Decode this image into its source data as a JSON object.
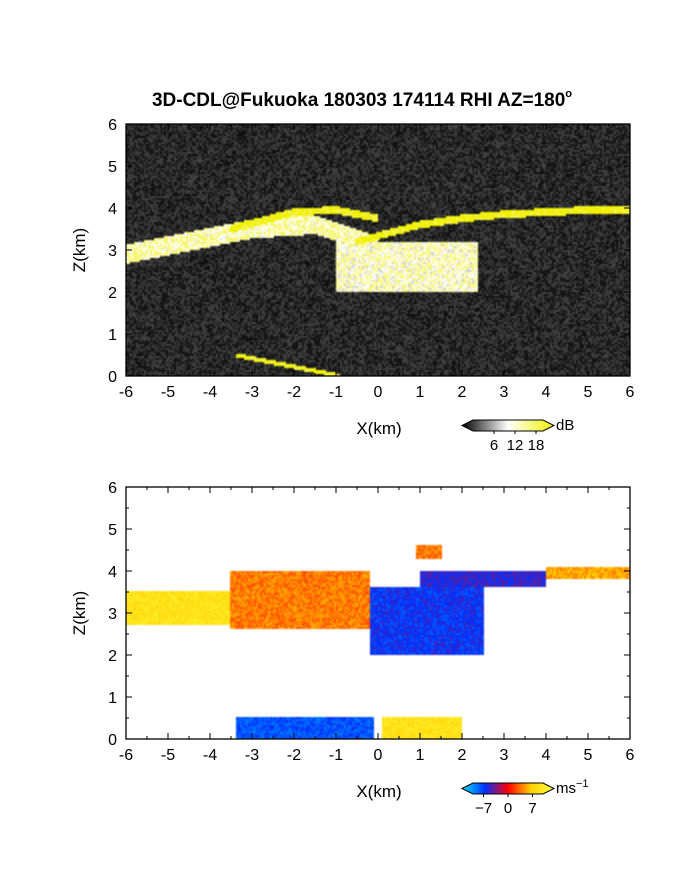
{
  "title": "3D-CDL@Fukuoka 180303 174114 RHI AZ=180",
  "title_degree": "o",
  "chart_data": [
    {
      "type": "heatmap",
      "variable": "reflectivity",
      "xlabel": "X(km)",
      "ylabel": "Z(km)",
      "xlim": [
        -6,
        6
      ],
      "ylim": [
        0,
        6
      ],
      "xticks": [
        "-6",
        "-5",
        "-4",
        "-3",
        "-2",
        "-1",
        "0",
        "1",
        "2",
        "3",
        "4",
        "5",
        "6"
      ],
      "yticks": [
        "0",
        "1",
        "2",
        "3",
        "4",
        "5",
        "6"
      ],
      "background": "#0b0b0b",
      "colorbar": {
        "unit": "dB",
        "ticks": [
          "6",
          "12",
          "18"
        ],
        "range": [
          0,
          20
        ],
        "colors": [
          "#000000",
          "#ffffff",
          "#f0f000"
        ]
      },
      "features": [
        {
          "kind": "cloud-band",
          "x": [
            -6,
            -4.5,
            -3,
            -1.5,
            0
          ],
          "z_center": [
            2.9,
            3.2,
            3.5,
            3.6,
            3.1
          ],
          "thickness_km": 0.45,
          "value_db": 13
        },
        {
          "kind": "cloud-mass",
          "x_range": [
            -1,
            2.4
          ],
          "z_range": [
            2.0,
            3.2
          ],
          "value_db": 12
        },
        {
          "kind": "thin-layer",
          "x": [
            -0.5,
            1,
            2,
            3,
            4,
            5,
            6
          ],
          "z": [
            3.2,
            3.6,
            3.75,
            3.85,
            3.9,
            3.95,
            3.95
          ],
          "value_db": 20
        },
        {
          "kind": "cloud-top",
          "x": [
            -3.5,
            -2,
            -1,
            0
          ],
          "z": [
            3.5,
            3.9,
            3.95,
            3.75
          ],
          "value_db": 20
        },
        {
          "kind": "ground-echo",
          "x": [
            -3.4,
            -0.9
          ],
          "z": [
            0.5,
            0.0
          ],
          "value_db": 20
        }
      ]
    },
    {
      "type": "heatmap",
      "variable": "doppler velocity",
      "xlabel": "X(km)",
      "ylabel": "Z(km)",
      "xlim": [
        -6,
        6
      ],
      "ylim": [
        0,
        6
      ],
      "xticks": [
        "-6",
        "-5",
        "-4",
        "-3",
        "-2",
        "-1",
        "0",
        "1",
        "2",
        "3",
        "4",
        "5",
        "6"
      ],
      "yticks": [
        "0",
        "1",
        "2",
        "3",
        "4",
        "5",
        "6"
      ],
      "background": "#ffffff",
      "colorbar": {
        "unit": "ms",
        "unit_exp": "−1",
        "ticks": [
          "−7",
          "0",
          "7"
        ],
        "range": [
          -10,
          10
        ],
        "colors": [
          "#00e0ff",
          "#0030ff",
          "#ff0000",
          "#ffd000",
          "#ffff40"
        ]
      },
      "features": [
        {
          "kind": "echo",
          "x_range": [
            -6,
            -3.5
          ],
          "z_range": [
            2.7,
            3.5
          ],
          "velocity_ms": 7
        },
        {
          "kind": "echo",
          "x_range": [
            -3.5,
            -0.2
          ],
          "z_range": [
            2.6,
            4.0
          ],
          "velocity_ms": 3
        },
        {
          "kind": "echo",
          "x_range": [
            -0.2,
            2.5
          ],
          "z_range": [
            2.0,
            3.6
          ],
          "velocity_ms": -5
        },
        {
          "kind": "echo",
          "x_range": [
            1.0,
            4.0
          ],
          "z_range": [
            3.6,
            4.0
          ],
          "velocity_ms": -4
        },
        {
          "kind": "echo",
          "x_range": [
            4.0,
            6.0
          ],
          "z_range": [
            3.8,
            4.1
          ],
          "velocity_ms": 4
        },
        {
          "kind": "echo",
          "x_range": [
            0.9,
            1.5
          ],
          "z_range": [
            4.3,
            4.6
          ],
          "velocity_ms": 3
        },
        {
          "kind": "echo",
          "x_range": [
            -3.4,
            -0.1
          ],
          "z_range": [
            0.0,
            0.5
          ],
          "velocity_ms": -6
        },
        {
          "kind": "echo",
          "x_range": [
            0.1,
            2.0
          ],
          "z_range": [
            0.0,
            0.5
          ],
          "velocity_ms": 7
        }
      ]
    }
  ]
}
